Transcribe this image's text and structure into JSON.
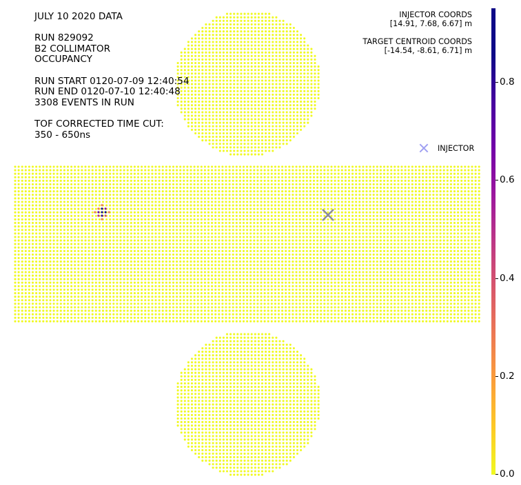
{
  "info": {
    "title": "JULY 10 2020 DATA",
    "run": "RUN 829092",
    "detector": "B2 COLLIMATOR",
    "quantity": "OCCUPANCY",
    "run_start": "RUN START 0120-07-09 12:40:54",
    "run_end": "RUN END 0120-07-10 12:40:48",
    "events": "3308 EVENTS IN RUN",
    "cut_label": "TOF CORRECTED TIME CUT:",
    "cut_range": "350 - 650ns"
  },
  "injector_coords": {
    "label": "INJECTOR COORDS",
    "value": "[14.91, 7.68, 6.67] m"
  },
  "target_coords": {
    "label": "TARGET CENTROID COORDS",
    "value": "[-14.54, -8.61, 6.71] m"
  },
  "legend": {
    "label": "INJECTOR",
    "color": "#9fa0f2"
  },
  "chart_data": {
    "type": "heatmap",
    "description_of_geometry": "cylindrical detector unrolled: top end-cap disk, barrel rectangle, bottom end-cap disk",
    "colormap": "plasma_r",
    "colorbar": {
      "min": 0.0,
      "max": 0.95,
      "ticks": [
        0.0,
        0.2,
        0.4,
        0.6,
        0.8
      ],
      "tick_labels": [
        "0.0",
        "0.2",
        "0.4",
        "0.6",
        "0.8"
      ]
    },
    "background_value": 0.0,
    "hotspot": {
      "region": "barrel",
      "values": [
        0.95,
        0.9,
        0.85,
        0.8,
        0.7,
        0.6,
        0.5,
        0.4,
        0.3
      ]
    },
    "injector_marker": {
      "region": "barrel",
      "symbol": "x",
      "color": "#8a8aa0"
    },
    "axes": "off",
    "grid": false,
    "legend_position": "right, below coordinates"
  }
}
